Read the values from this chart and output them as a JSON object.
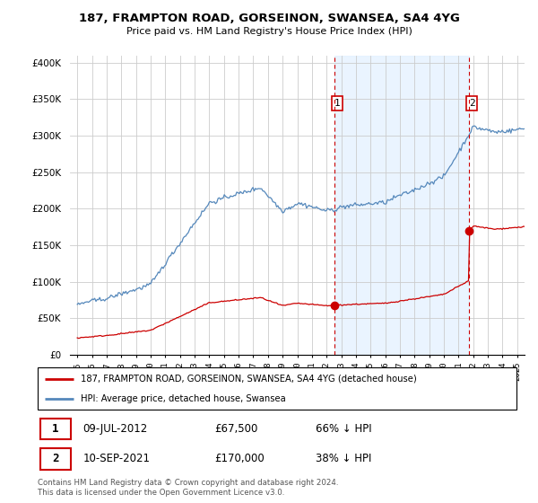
{
  "title": "187, FRAMPTON ROAD, GORSEINON, SWANSEA, SA4 4YG",
  "subtitle": "Price paid vs. HM Land Registry's House Price Index (HPI)",
  "legend_line1": "187, FRAMPTON ROAD, GORSEINON, SWANSEA, SA4 4YG (detached house)",
  "legend_line2": "HPI: Average price, detached house, Swansea",
  "footer": "Contains HM Land Registry data © Crown copyright and database right 2024.\nThis data is licensed under the Open Government Licence v3.0.",
  "point1_label": "1",
  "point1_date": "09-JUL-2012",
  "point1_price": "£67,500",
  "point1_hpi": "66% ↓ HPI",
  "point2_label": "2",
  "point2_date": "10-SEP-2021",
  "point2_price": "£170,000",
  "point2_hpi": "38% ↓ HPI",
  "red_color": "#cc0000",
  "blue_color": "#5588bb",
  "blue_fill": "#ddeeff",
  "vline_color": "#cc0000",
  "background_color": "#ffffff",
  "grid_color": "#cccccc",
  "ylim": [
    0,
    410000
  ],
  "xlim_start": 1994.5,
  "xlim_end": 2025.5,
  "sale1_year": 2012.52,
  "sale1_price": 67500,
  "sale2_year": 2021.71,
  "sale2_price": 170000
}
